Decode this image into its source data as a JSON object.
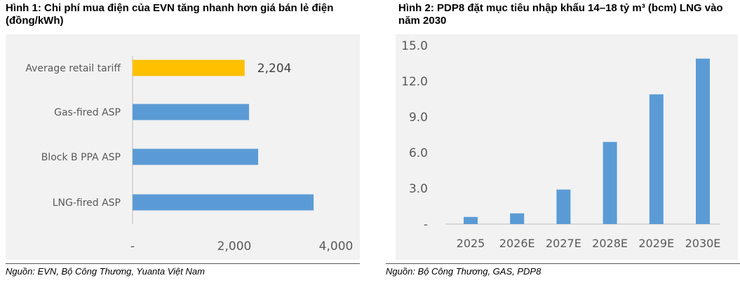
{
  "figure1": {
    "title": "Hình 1: Chi phí mua điện của EVN tăng nhanh hơn giá bán lẻ điện (đồng/kWh)",
    "source": "Nguồn: EVN, Bộ Công Thương, Yuanta Việt Nam"
  },
  "figure2": {
    "title": "Hình 2: PDP8 đặt mục tiêu nhập khẩu 14–18 tỷ m³ (bcm) LNG vào năm 2030",
    "source": "Nguồn: Bộ Công Thương, GAS, PDP8"
  },
  "chart_data": [
    {
      "type": "bar",
      "orientation": "horizontal",
      "categories": [
        "Average retail tariff",
        "Gas-fired ASP",
        "Block B PPA ASP",
        "LNG-fired ASP"
      ],
      "values": [
        2204,
        2290,
        2470,
        3560
      ],
      "data_labels": [
        "2,204",
        "",
        "",
        ""
      ],
      "bar_colors": [
        "#ffc000",
        "#5b9bd5",
        "#5b9bd5",
        "#5b9bd5"
      ],
      "xticks": [
        "-",
        "2,000",
        "4,000"
      ],
      "xlim": [
        0,
        4000
      ],
      "grid": false
    },
    {
      "type": "bar",
      "categories": [
        "2025",
        "2026E",
        "2027E",
        "2028E",
        "2029E",
        "2030E"
      ],
      "values": [
        0.6,
        0.9,
        2.9,
        6.9,
        10.9,
        13.9
      ],
      "bar_color": "#5b9bd5",
      "yticks": [
        "-",
        "3.0",
        "6.0",
        "9.0",
        "12.0",
        "15.0"
      ],
      "ylim": [
        0,
        15
      ],
      "grid": false
    }
  ]
}
